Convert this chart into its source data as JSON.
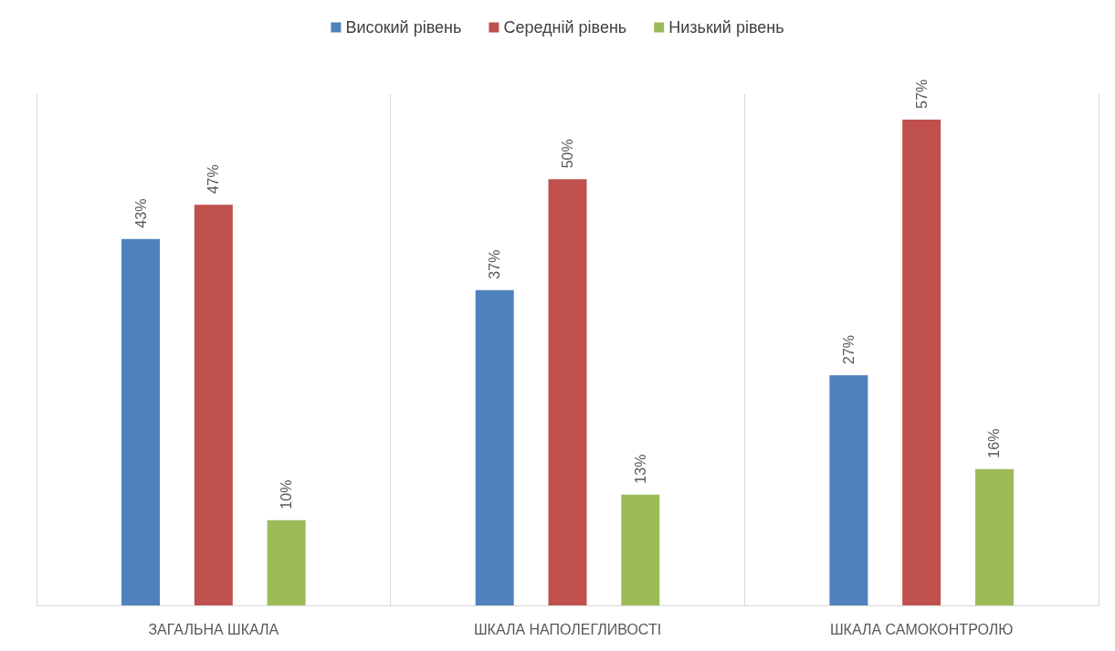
{
  "chart_data": {
    "type": "bar",
    "categories": [
      "ЗАГАЛЬНА ШКАЛА",
      "ШКАЛА НАПОЛЕГЛИВОСТІ",
      "ШКАЛА САМОКОНТРОЛЮ"
    ],
    "series": [
      {
        "name": "Високий рівень",
        "color": "#4f81bd",
        "values": [
          43,
          37,
          27
        ],
        "value_labels": [
          "43%",
          "37%",
          "27%"
        ]
      },
      {
        "name": "Середній рівень",
        "color": "#c0504d",
        "values": [
          47,
          50,
          57
        ],
        "value_labels": [
          "47%",
          "50%",
          "57%"
        ]
      },
      {
        "name": "Низький рівень",
        "color": "#9bbb59",
        "values": [
          10,
          13,
          16
        ],
        "value_labels": [
          "10%",
          "13%",
          "16%"
        ]
      }
    ],
    "ylim": [
      0,
      60
    ],
    "tick_labels": "x",
    "grid": "x",
    "legend": "top"
  }
}
